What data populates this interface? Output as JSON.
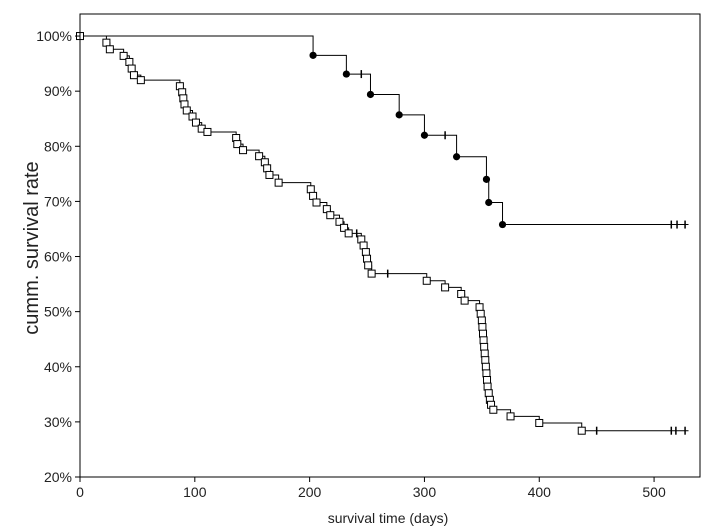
{
  "chart_data": {
    "type": "line",
    "xlabel": "survival time (days)",
    "ylabel": "cumm. survival rate",
    "xlim": [
      0,
      540
    ],
    "ylim": [
      20,
      104
    ],
    "x_ticks": [
      0,
      100,
      200,
      300,
      400,
      500
    ],
    "y_ticks": [
      20,
      30,
      40,
      50,
      60,
      70,
      80,
      90,
      100
    ],
    "y_tick_suffix": "%",
    "grid": false,
    "series": [
      {
        "marker": "filled-circle",
        "color": "#000000",
        "start": [
          0,
          100
        ],
        "steps": [
          [
            203,
            96.5
          ],
          [
            232,
            93.1
          ],
          [
            253,
            89.4
          ],
          [
            278,
            85.7
          ],
          [
            300,
            82.0
          ],
          [
            328,
            78.1
          ],
          [
            354,
            74.0
          ],
          [
            356,
            69.8
          ],
          [
            368,
            65.8
          ]
        ],
        "censored": [
          [
            245,
            93.1
          ],
          [
            318,
            82.0
          ],
          [
            515,
            65.8
          ],
          [
            520,
            65.8
          ],
          [
            527,
            65.8
          ]
        ],
        "end_x": 530
      },
      {
        "marker": "open-square",
        "color": "#000000",
        "start": [
          0,
          100
        ],
        "steps": [
          [
            23,
            98.8
          ],
          [
            26,
            97.6
          ],
          [
            38,
            96.4
          ],
          [
            43,
            95.3
          ],
          [
            45,
            94.1
          ],
          [
            47,
            92.9
          ],
          [
            53,
            92.0
          ],
          [
            87,
            90.9
          ],
          [
            89,
            89.8
          ],
          [
            90,
            88.7
          ],
          [
            91,
            87.6
          ],
          [
            93,
            86.5
          ],
          [
            98,
            85.4
          ],
          [
            101,
            84.3
          ],
          [
            106,
            83.2
          ],
          [
            111,
            82.6
          ],
          [
            136,
            81.5
          ],
          [
            137,
            80.4
          ],
          [
            142,
            79.3
          ],
          [
            156,
            78.2
          ],
          [
            161,
            77.1
          ],
          [
            163,
            76.0
          ],
          [
            165,
            74.8
          ],
          [
            173,
            73.4
          ],
          [
            201,
            72.2
          ],
          [
            203,
            71.0
          ],
          [
            206,
            69.8
          ],
          [
            215,
            68.6
          ],
          [
            218,
            67.5
          ],
          [
            226,
            66.3
          ],
          [
            230,
            65.2
          ],
          [
            234,
            64.2
          ],
          [
            245,
            63.1
          ],
          [
            247,
            62.0
          ],
          [
            249,
            60.8
          ],
          [
            250,
            59.6
          ],
          [
            251,
            58.4
          ],
          [
            254,
            56.9
          ],
          [
            302,
            55.6
          ],
          [
            318,
            54.4
          ],
          [
            332,
            53.2
          ],
          [
            335,
            52.0
          ],
          [
            348,
            50.8
          ],
          [
            349,
            49.6
          ],
          [
            350,
            48.4
          ],
          [
            350.5,
            47.2
          ],
          [
            351,
            46.0
          ],
          [
            351.5,
            44.8
          ],
          [
            352,
            43.6
          ],
          [
            352.5,
            42.4
          ],
          [
            353,
            41.2
          ],
          [
            353.5,
            40.0
          ],
          [
            354,
            38.8
          ],
          [
            354.5,
            37.6
          ],
          [
            355,
            36.4
          ],
          [
            356,
            35.2
          ],
          [
            357,
            34.0
          ],
          [
            358,
            33.1
          ],
          [
            360,
            32.2
          ],
          [
            375,
            31.0
          ],
          [
            400,
            29.8
          ],
          [
            437,
            28.4
          ]
        ],
        "censored": [
          [
            241,
            64.2
          ],
          [
            268,
            56.9
          ],
          [
            450,
            28.4
          ],
          [
            515,
            28.4
          ],
          [
            519,
            28.4
          ],
          [
            527,
            28.4
          ]
        ],
        "end_x": 530
      }
    ]
  }
}
